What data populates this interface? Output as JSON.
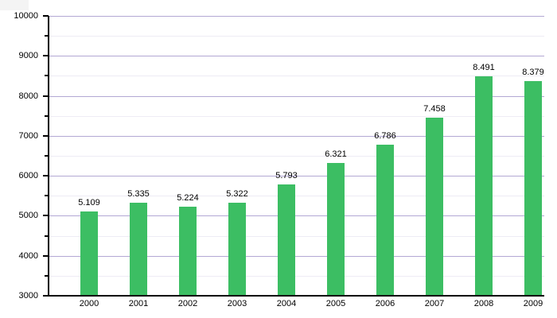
{
  "chart_data": {
    "type": "bar",
    "title": "",
    "xlabel": "",
    "ylabel": "",
    "categories": [
      "2000",
      "2001",
      "2002",
      "2003",
      "2004",
      "2005",
      "2006",
      "2007",
      "2008",
      "2009"
    ],
    "values": [
      5109,
      5335,
      5224,
      5322,
      5793,
      6321,
      6786,
      7458,
      8491,
      8379
    ],
    "value_labels": [
      "5.109",
      "5.335",
      "5.224",
      "5.322",
      "5.793",
      "6.321",
      "6.786",
      "7.458",
      "8.491",
      "8.379"
    ],
    "ylim": [
      3000,
      10000
    ],
    "ytick_major_step": 1000,
    "ytick_minor_step": 500,
    "ytick_labels": [
      "3000",
      "4000",
      "5000",
      "6000",
      "7000",
      "8000",
      "9000",
      "10000"
    ],
    "grid": "on",
    "legend": "none"
  },
  "colors": {
    "bar": "#3cbe63",
    "grid_major": "#b3a8d4",
    "grid_minor": "#eeecf5",
    "axis": "#000000",
    "text": "#000000",
    "background": "#ffffff"
  }
}
